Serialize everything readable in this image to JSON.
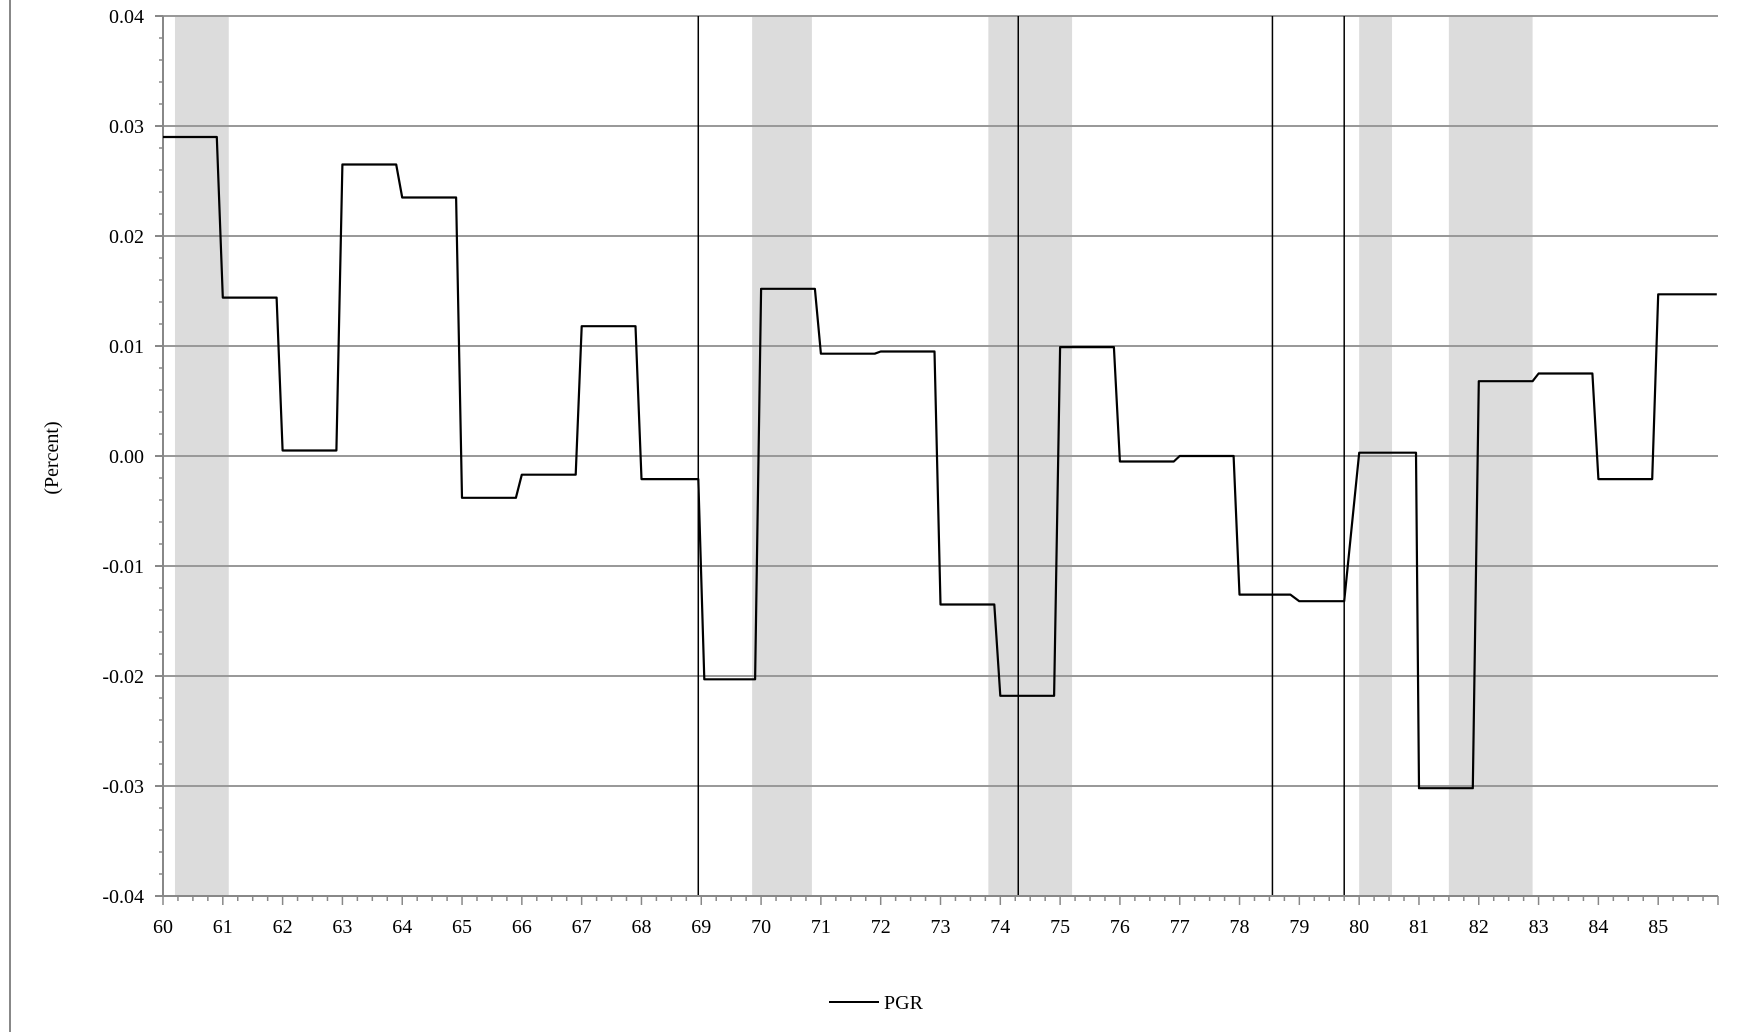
{
  "chart_data": {
    "type": "line",
    "title": "",
    "xlabel": "",
    "ylabel": "(Percent)",
    "xlim": [
      60,
      86
    ],
    "ylim": [
      -0.04,
      0.04
    ],
    "x_ticks": [
      "60",
      "61",
      "62",
      "63",
      "64",
      "65",
      "66",
      "67",
      "68",
      "69",
      "70",
      "71",
      "72",
      "73",
      "74",
      "75",
      "76",
      "77",
      "78",
      "79",
      "80",
      "81",
      "82",
      "83",
      "84",
      "85"
    ],
    "y_ticks": [
      "-0.04",
      "-0.03",
      "-0.02",
      "-0.01",
      "0.00",
      "0.01",
      "0.02",
      "0.03",
      "0.04"
    ],
    "grid": true,
    "legend_position": "bottom",
    "colors": {
      "line": "#000000",
      "shade": "#dcdcdc",
      "grid": "#999999",
      "axis": "#888888",
      "marker_line": "#000000"
    },
    "shaded_periods": [
      [
        60.2,
        61.1
      ],
      [
        69.85,
        70.85
      ],
      [
        73.8,
        75.2
      ],
      [
        80.0,
        80.55
      ],
      [
        81.5,
        82.9
      ]
    ],
    "vertical_markers": [
      68.95,
      74.3,
      78.55,
      79.75
    ],
    "series": [
      {
        "name": "PGR",
        "x": [
          60.0,
          60.9,
          61.0,
          61.9,
          62.0,
          62.9,
          63.0,
          63.9,
          64.0,
          64.9,
          65.0,
          65.9,
          66.0,
          66.9,
          67.0,
          67.9,
          68.0,
          68.95,
          69.05,
          69.9,
          70.0,
          70.9,
          71.0,
          71.9,
          72.0,
          72.9,
          73.0,
          73.9,
          74.0,
          74.9,
          75.0,
          75.9,
          76.0,
          76.9,
          77.0,
          77.9,
          78.0,
          78.85,
          79.0,
          79.75,
          80.0,
          80.95,
          81.0,
          81.9,
          82.0,
          82.9,
          83.0,
          83.9,
          84.0,
          84.9,
          85.0,
          85.98
        ],
        "values": [
          0.029,
          0.029,
          0.0144,
          0.0144,
          0.0005,
          0.0005,
          0.0265,
          0.0265,
          0.0235,
          0.0235,
          -0.0038,
          -0.0038,
          -0.0017,
          -0.0017,
          0.0118,
          0.0118,
          -0.0021,
          -0.0021,
          -0.0203,
          -0.0203,
          0.0152,
          0.0152,
          0.0093,
          0.0093,
          0.0095,
          0.0095,
          -0.0135,
          -0.0135,
          -0.0218,
          -0.0218,
          0.0099,
          0.0099,
          -0.0005,
          -0.0005,
          0.0,
          0.0,
          -0.0126,
          -0.0126,
          -0.0132,
          -0.0132,
          0.0003,
          0.0003,
          -0.0302,
          -0.0302,
          0.0068,
          0.0068,
          0.0075,
          0.0075,
          -0.0021,
          -0.0021,
          0.0147,
          0.0147
        ]
      }
    ]
  }
}
